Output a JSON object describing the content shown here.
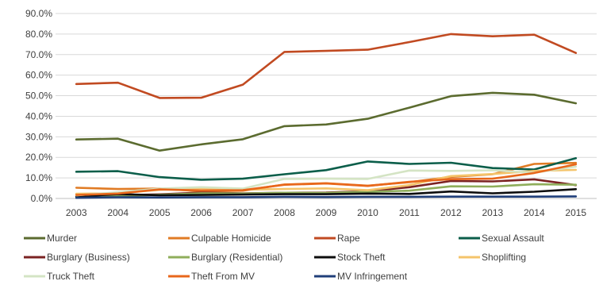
{
  "chart_data": {
    "type": "line",
    "title": "",
    "xlabel": "",
    "ylabel": "",
    "x": [
      "2003",
      "2004",
      "2005",
      "2006",
      "2007",
      "2008",
      "2009",
      "2010",
      "2011",
      "2012",
      "2013",
      "2014",
      "2015"
    ],
    "ylim": [
      0,
      90
    ],
    "ytick_step": 10,
    "ytick_format": "percent_1dp",
    "grid": true,
    "legend_position": "bottom",
    "series": [
      {
        "name": "Murder",
        "color": "#5b6b2f",
        "values": [
          28.7,
          29.1,
          23.3,
          26.3,
          28.8,
          35.2,
          36.0,
          38.8,
          44.2,
          49.8,
          51.4,
          50.5,
          46.3
        ]
      },
      {
        "name": "Culpable Homicide",
        "color": "#e07b24",
        "values": [
          5.2,
          4.6,
          4.8,
          3.5,
          3.8,
          6.8,
          7.4,
          6.2,
          7.9,
          10.5,
          11.8,
          16.8,
          17.3
        ]
      },
      {
        "name": "Rape",
        "color": "#c14a21",
        "values": [
          55.7,
          56.3,
          48.9,
          49.0,
          55.4,
          71.3,
          71.8,
          72.4,
          76.1,
          80.0,
          78.9,
          79.7,
          70.8
        ]
      },
      {
        "name": "Sexual Assault",
        "color": "#0b5e4a",
        "values": [
          13.0,
          13.3,
          10.4,
          9.1,
          9.6,
          11.8,
          13.8,
          18.0,
          16.8,
          17.4,
          14.8,
          14.1,
          19.6
        ]
      },
      {
        "name": "Burglary (Business)",
        "color": "#7b2323",
        "values": [
          1.0,
          1.5,
          2.0,
          2.9,
          2.5,
          2.8,
          2.9,
          3.5,
          5.5,
          8.5,
          8.3,
          9.3,
          6.5
        ]
      },
      {
        "name": "Burglary (Residential)",
        "color": "#8fae5b",
        "values": [
          0.9,
          1.2,
          1.8,
          2.5,
          2.4,
          2.8,
          2.7,
          3.3,
          3.8,
          5.9,
          5.8,
          6.9,
          6.7
        ]
      },
      {
        "name": "Stock Theft",
        "color": "#0d0d0d",
        "values": [
          0.9,
          2.1,
          1.6,
          1.7,
          1.9,
          2.1,
          2.1,
          2.4,
          2.2,
          3.4,
          2.5,
          3.3,
          4.5
        ]
      },
      {
        "name": "Shoplifting",
        "color": "#f4c46b",
        "values": [
          2.3,
          2.5,
          4.2,
          4.9,
          4.3,
          4.6,
          4.9,
          4.0,
          6.5,
          10.9,
          11.9,
          13.4,
          13.9
        ]
      },
      {
        "name": "Truck Theft",
        "color": "#d4e4c4",
        "values": [
          1.5,
          3.0,
          4.8,
          5.5,
          4.8,
          9.5,
          9.6,
          9.5,
          13.6,
          13.4,
          13.7,
          12.5,
          15.5
        ]
      },
      {
        "name": "Theft From MV",
        "color": "#e8671b",
        "values": [
          1.7,
          2.4,
          4.4,
          3.9,
          4.0,
          6.7,
          7.3,
          6.1,
          8.1,
          9.4,
          9.6,
          12.4,
          16.6
        ]
      },
      {
        "name": "MV Infringement",
        "color": "#203f7a",
        "values": [
          0.3,
          0.6,
          0.5,
          0.6,
          0.6,
          0.8,
          0.7,
          0.8,
          0.8,
          0.9,
          0.9,
          0.9,
          1.0
        ]
      }
    ]
  }
}
